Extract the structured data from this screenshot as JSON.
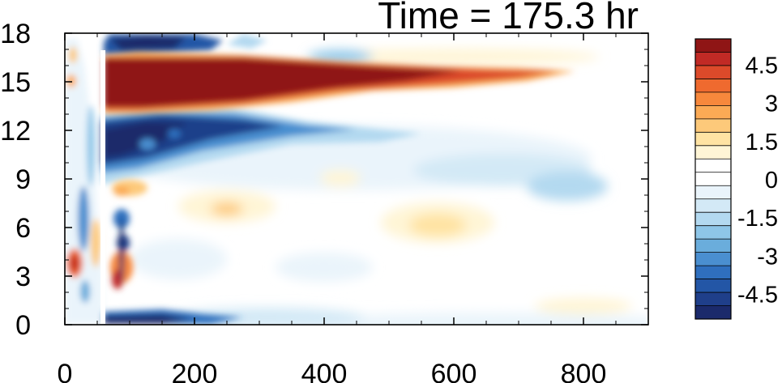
{
  "chart_data": {
    "type": "heatmap",
    "title": "Time = 175.3 hr",
    "xlabel": "",
    "ylabel": "",
    "xlim": [
      0,
      900
    ],
    "ylim": [
      0,
      18
    ],
    "x_ticks": [
      0,
      200,
      400,
      600,
      800
    ],
    "y_ticks": [
      0,
      3,
      6,
      9,
      12,
      15,
      18
    ],
    "grid": false,
    "colorbar": {
      "placement": "right",
      "range": [
        -5.5,
        5.5
      ],
      "levels": [
        -5,
        -4.5,
        -4,
        -3.5,
        -3,
        -2.5,
        -2,
        -1.5,
        -1,
        -0.5,
        0,
        0.5,
        1,
        1.5,
        2,
        2.5,
        3,
        3.5,
        4,
        4.5,
        5
      ],
      "tick_labels": [
        "4.5",
        "3",
        "1.5",
        "0",
        "-1.5",
        "-3",
        "-4.5"
      ],
      "tick_values": [
        4.5,
        3,
        1.5,
        0,
        -1.5,
        -3,
        -4.5
      ],
      "colors": [
        "#1b2a6b",
        "#1f3f8a",
        "#2356a6",
        "#2f6fbe",
        "#4a8fd0",
        "#6aaddc",
        "#8ec6e8",
        "#b3d9f0",
        "#d3e9f6",
        "#eaf4fb",
        "#ffffff",
        "#ffffff",
        "#fff5d6",
        "#ffe3a3",
        "#fdc97a",
        "#fbaa55",
        "#f7883c",
        "#ef6a2f",
        "#dc4a2a",
        "#c12a25",
        "#8f1515"
      ]
    },
    "features": [
      {
        "desc": "strong positive band",
        "x": [
          60,
          720
        ],
        "y": 15.0,
        "value": 5.5
      },
      {
        "desc": "strong negative band below",
        "x": [
          60,
          450
        ],
        "y": 12.0,
        "value": -5.0
      },
      {
        "desc": "negative band near surface",
        "x": [
          60,
          300
        ],
        "y": 0.4,
        "value": -5.0
      },
      {
        "desc": "negative region at top",
        "x": [
          60,
          250
        ],
        "y": 17.8,
        "value": -5.0
      },
      {
        "desc": "positive region near origin",
        "x": [
          0,
          20
        ],
        "y": 3.5,
        "value": 3.5
      },
      {
        "desc": "positive region",
        "x": [
          60,
          110
        ],
        "y": 3.0,
        "value": 5.0
      }
    ]
  }
}
